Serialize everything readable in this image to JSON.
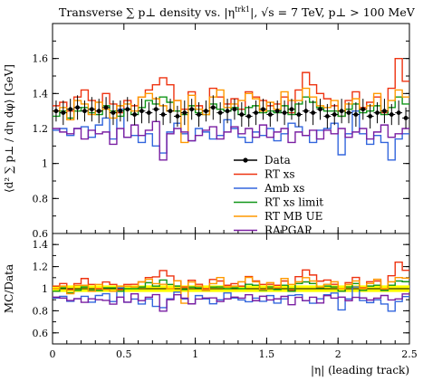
{
  "chart_data": [
    {
      "type": "line",
      "panel": "main",
      "title": "Transverse ∑ p⊥ density vs. |η",
      "title_superscript": "trk1",
      "title_suffix": "|, √s = 7 TeV, p⊥ > 100 MeV",
      "ylabel": "⟨d² ∑ p⊥ / dη dφ⟩ [GeV]",
      "ylim": [
        0.6,
        1.8
      ],
      "yticks": [
        0.6,
        0.8,
        1.0,
        1.2,
        1.4,
        1.6
      ],
      "ytick_labels": [
        "0.6",
        "0.8",
        "1",
        "1.2",
        "1.4",
        "1.6"
      ],
      "xlim": [
        0,
        2.5
      ],
      "bin_edges": [
        0,
        0.05,
        0.1,
        0.15,
        0.2,
        0.25,
        0.3,
        0.35,
        0.4,
        0.45,
        0.5,
        0.55,
        0.6,
        0.65,
        0.7,
        0.75,
        0.8,
        0.85,
        0.9,
        0.95,
        1.0,
        1.05,
        1.1,
        1.15,
        1.2,
        1.25,
        1.3,
        1.35,
        1.4,
        1.45,
        1.5,
        1.55,
        1.6,
        1.65,
        1.7,
        1.75,
        1.8,
        1.85,
        1.9,
        1.95,
        2.0,
        2.05,
        2.1,
        2.15,
        2.2,
        2.25,
        2.3,
        2.35,
        2.4,
        2.45,
        2.5
      ],
      "legend_position": "right, mid-panel",
      "series": [
        {
          "name": "Data",
          "color": "#000000",
          "style": "points",
          "x": [
            0.025,
            0.075,
            0.125,
            0.175,
            0.225,
            0.275,
            0.325,
            0.375,
            0.425,
            0.475,
            0.525,
            0.575,
            0.625,
            0.675,
            0.725,
            0.775,
            0.825,
            0.875,
            0.925,
            0.975,
            1.025,
            1.075,
            1.125,
            1.175,
            1.225,
            1.275,
            1.325,
            1.375,
            1.425,
            1.475,
            1.525,
            1.575,
            1.625,
            1.675,
            1.725,
            1.775,
            1.825,
            1.875,
            1.925,
            1.975,
            2.025,
            2.075,
            2.125,
            2.175,
            2.225,
            2.275,
            2.325,
            2.375,
            2.425,
            2.475
          ],
          "values": [
            1.3,
            1.29,
            1.31,
            1.32,
            1.3,
            1.31,
            1.3,
            1.32,
            1.29,
            1.3,
            1.31,
            1.28,
            1.3,
            1.29,
            1.31,
            1.28,
            1.3,
            1.27,
            1.29,
            1.31,
            1.28,
            1.3,
            1.32,
            1.29,
            1.3,
            1.31,
            1.28,
            1.27,
            1.29,
            1.31,
            1.28,
            1.3,
            1.29,
            1.31,
            1.28,
            1.3,
            1.29,
            1.31,
            1.27,
            1.28,
            1.3,
            1.29,
            1.28,
            1.31,
            1.27,
            1.29,
            1.3,
            1.28,
            1.29,
            1.26
          ],
          "errors": [
            0.06,
            0.07,
            0.06,
            0.07,
            0.06,
            0.07,
            0.07,
            0.06,
            0.07,
            0.06,
            0.07,
            0.06,
            0.07,
            0.06,
            0.07,
            0.06,
            0.07,
            0.06,
            0.07,
            0.06,
            0.07,
            0.06,
            0.07,
            0.06,
            0.07,
            0.06,
            0.07,
            0.06,
            0.07,
            0.06,
            0.07,
            0.06,
            0.07,
            0.06,
            0.07,
            0.06,
            0.07,
            0.06,
            0.07,
            0.06,
            0.07,
            0.06,
            0.07,
            0.06,
            0.07,
            0.06,
            0.07,
            0.06,
            0.07,
            0.06
          ]
        },
        {
          "name": "RT xs",
          "color": "#ee3311",
          "style": "step",
          "values": [
            1.33,
            1.35,
            1.3,
            1.38,
            1.42,
            1.36,
            1.3,
            1.4,
            1.34,
            1.29,
            1.36,
            1.33,
            1.38,
            1.42,
            1.45,
            1.49,
            1.45,
            1.36,
            1.31,
            1.41,
            1.33,
            1.3,
            1.43,
            1.38,
            1.34,
            1.37,
            1.31,
            1.41,
            1.38,
            1.36,
            1.33,
            1.34,
            1.38,
            1.29,
            1.42,
            1.52,
            1.45,
            1.4,
            1.37,
            1.33,
            1.27,
            1.36,
            1.41,
            1.32,
            1.35,
            1.38,
            1.29,
            1.43,
            1.6,
            1.47
          ]
        },
        {
          "name": "Amb xs",
          "color": "#3366dd",
          "style": "step",
          "values": [
            1.19,
            1.2,
            1.16,
            1.2,
            1.21,
            1.15,
            1.22,
            1.26,
            1.14,
            1.31,
            1.15,
            1.16,
            1.12,
            1.17,
            1.1,
            1.06,
            1.18,
            1.23,
            1.17,
            1.13,
            1.2,
            1.18,
            1.14,
            1.16,
            1.25,
            1.2,
            1.15,
            1.12,
            1.18,
            1.16,
            1.2,
            1.13,
            1.17,
            1.23,
            1.21,
            1.16,
            1.12,
            1.19,
            1.2,
            1.23,
            1.05,
            1.17,
            1.3,
            1.17,
            1.11,
            1.16,
            1.12,
            1.02,
            1.14,
            1.17
          ]
        },
        {
          "name": "RT xs limit",
          "color": "#109618",
          "style": "step",
          "values": [
            1.27,
            1.3,
            1.26,
            1.3,
            1.32,
            1.29,
            1.28,
            1.33,
            1.3,
            1.27,
            1.31,
            1.28,
            1.32,
            1.36,
            1.34,
            1.38,
            1.35,
            1.3,
            1.28,
            1.33,
            1.29,
            1.28,
            1.34,
            1.31,
            1.3,
            1.32,
            1.28,
            1.32,
            1.33,
            1.29,
            1.3,
            1.29,
            1.33,
            1.28,
            1.34,
            1.38,
            1.35,
            1.32,
            1.3,
            1.3,
            1.27,
            1.31,
            1.34,
            1.29,
            1.3,
            1.33,
            1.28,
            1.32,
            1.38,
            1.34
          ]
        },
        {
          "name": "RT MB UE",
          "color": "#ff9900",
          "style": "step",
          "values": [
            1.3,
            1.32,
            1.25,
            1.36,
            1.34,
            1.28,
            1.35,
            1.31,
            1.26,
            1.33,
            1.34,
            1.3,
            1.38,
            1.4,
            1.37,
            1.33,
            1.3,
            1.36,
            1.12,
            1.39,
            1.31,
            1.28,
            1.38,
            1.42,
            1.32,
            1.34,
            1.36,
            1.4,
            1.37,
            1.3,
            1.35,
            1.31,
            1.41,
            1.36,
            1.36,
            1.43,
            1.38,
            1.33,
            1.32,
            1.36,
            1.3,
            1.34,
            1.37,
            1.31,
            1.33,
            1.4,
            1.3,
            1.36,
            1.42,
            1.38
          ]
        },
        {
          "name": "RAPGAP",
          "color": "#7a1fa2",
          "style": "step",
          "values": [
            1.2,
            1.18,
            1.17,
            1.2,
            1.14,
            1.19,
            1.17,
            1.18,
            1.11,
            1.2,
            1.15,
            1.22,
            1.16,
            1.19,
            1.24,
            1.02,
            1.17,
            1.2,
            1.18,
            1.13,
            1.16,
            1.19,
            1.21,
            1.14,
            1.18,
            1.21,
            1.17,
            1.2,
            1.15,
            1.22,
            1.15,
            1.18,
            1.2,
            1.12,
            1.18,
            1.16,
            1.19,
            1.14,
            1.19,
            1.17,
            1.2,
            1.15,
            1.18,
            1.2,
            1.14,
            1.18,
            1.22,
            1.15,
            1.17,
            1.2
          ]
        }
      ]
    },
    {
      "type": "line",
      "panel": "ratio",
      "ylabel": "MC/Data",
      "xlabel": "|η| (leading track)",
      "ylim": [
        0.5,
        1.5
      ],
      "yticks": [
        0.6,
        0.8,
        1.0,
        1.2,
        1.4
      ],
      "ytick_labels": [
        "0.6",
        "0.8",
        "1",
        "1.2",
        "1.4"
      ],
      "xlim": [
        0,
        2.5
      ],
      "xticks": [
        0,
        0.5,
        1.0,
        1.5,
        2.0,
        2.5
      ],
      "xtick_labels": [
        "0",
        "0.5",
        "1",
        "1.5",
        "2",
        "2.5"
      ],
      "band": {
        "color": "#ffff00",
        "low": 0.97,
        "high": 1.03,
        "line_at": 1.0
      }
    }
  ]
}
